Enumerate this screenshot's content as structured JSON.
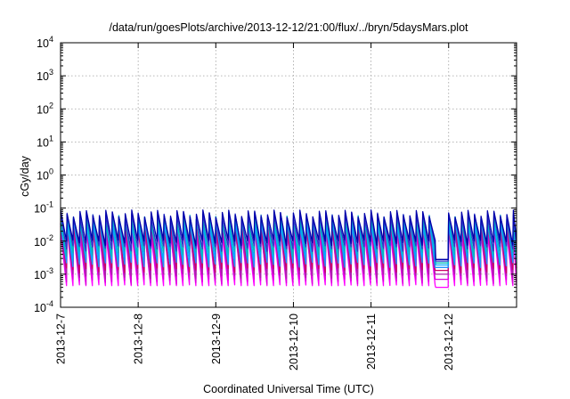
{
  "chart_data": {
    "type": "line",
    "title": "/data/run/goesPlots/archive/2013-12-12/21:00/flux/../bryn/5daysMars.plot",
    "xlabel": "Coordinated Universal Time (UTC)",
    "ylabel": "cGy/day",
    "y_scale": "log",
    "ylim": [
      0.0001,
      10000
    ],
    "y_ticks": [
      {
        "value": 0.0001,
        "base": "10",
        "exp": "-4"
      },
      {
        "value": 0.001,
        "base": "10",
        "exp": "-3"
      },
      {
        "value": 0.01,
        "base": "10",
        "exp": "-2"
      },
      {
        "value": 0.1,
        "base": "10",
        "exp": "-1"
      },
      {
        "value": 1,
        "base": "10",
        "exp": "0"
      },
      {
        "value": 10,
        "base": "10",
        "exp": "1"
      },
      {
        "value": 100,
        "base": "10",
        "exp": "2"
      },
      {
        "value": 1000,
        "base": "10",
        "exp": "3"
      },
      {
        "value": 10000,
        "base": "10",
        "exp": "4"
      }
    ],
    "xlim": [
      "2013-12-07",
      "2013-12-12T21:00"
    ],
    "x_ticks": [
      "2013-12-7",
      "2013-12-8",
      "2013-12-9",
      "2013-12-10",
      "2013-12-11",
      "2013-12-12"
    ],
    "grid": true,
    "legend": "none",
    "series_colors": [
      "#ff00ff",
      "#dd00dd",
      "#aa22aa",
      "#cc0066",
      "#1e90ff",
      "#00aaff",
      "#00bbbb",
      "#3333cc",
      "#0000aa"
    ],
    "series_envelope": {
      "cycles_per_day": 12,
      "peak_range": [
        0.02,
        0.07
      ],
      "trough_range": [
        0.0004,
        0.009
      ],
      "data_gap": {
        "start": "2013-12-11T20:00",
        "end": "2013-12-11T22:00",
        "value_min": 0.0004
      }
    }
  }
}
